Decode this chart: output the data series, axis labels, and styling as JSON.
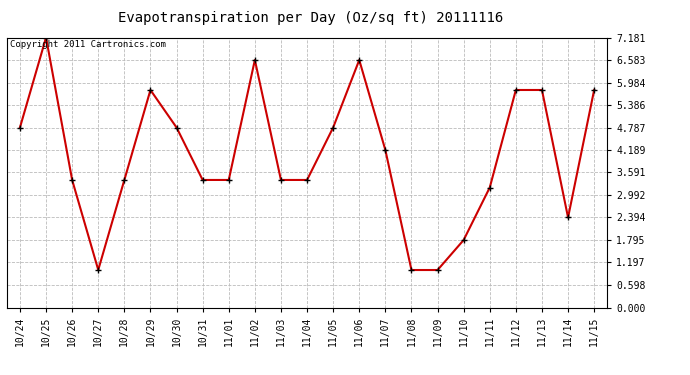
{
  "title": "Evapotranspiration per Day (Oz/sq ft) 20111116",
  "copyright_text": "Copyright 2011 Cartronics.com",
  "x_labels": [
    "10/24",
    "10/25",
    "10/26",
    "10/27",
    "10/28",
    "10/29",
    "10/30",
    "10/31",
    "11/01",
    "11/02",
    "11/03",
    "11/04",
    "11/05",
    "11/06",
    "11/07",
    "11/08",
    "11/09",
    "11/10",
    "11/11",
    "11/12",
    "11/13",
    "11/14",
    "11/15"
  ],
  "y_values": [
    4.787,
    7.181,
    3.392,
    1.0,
    3.392,
    5.785,
    4.787,
    3.392,
    3.392,
    6.583,
    3.392,
    3.392,
    4.787,
    6.583,
    4.189,
    0.997,
    0.997,
    1.795,
    3.191,
    5.785,
    5.785,
    2.394,
    5.785
  ],
  "line_color": "#cc0000",
  "marker": "+",
  "marker_size": 5,
  "line_width": 1.5,
  "background_color": "#ffffff",
  "grid_color": "#bbbbbb",
  "y_ticks": [
    0.0,
    0.598,
    1.197,
    1.795,
    2.394,
    2.992,
    3.591,
    4.189,
    4.787,
    5.386,
    5.984,
    6.583,
    7.181
  ],
  "ylim": [
    0.0,
    7.181
  ],
  "title_fontsize": 10,
  "tick_fontsize": 7,
  "copyright_fontsize": 6.5
}
